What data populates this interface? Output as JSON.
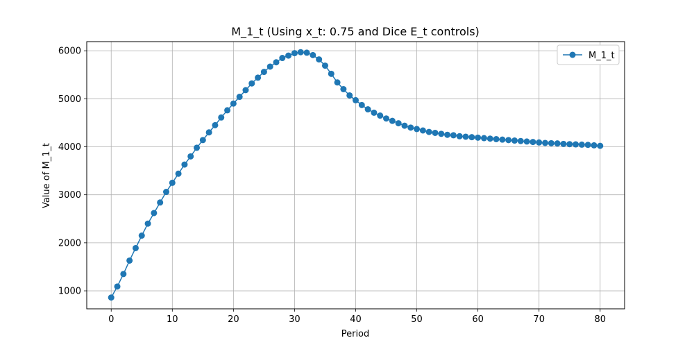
{
  "chart_data": {
    "type": "line",
    "title": "M_1_t (Using x_t: 0.75 and Dice E_t controls)",
    "xlabel": "Period",
    "ylabel": "Value of M_1_t",
    "xlim": [
      -4,
      84
    ],
    "ylim": [
      625,
      6190
    ],
    "xticks": [
      0,
      10,
      20,
      30,
      40,
      50,
      60,
      70,
      80
    ],
    "yticks": [
      1000,
      2000,
      3000,
      4000,
      5000,
      6000
    ],
    "grid": true,
    "legend_position": "top-right",
    "series": [
      {
        "name": "M_1_t",
        "color": "#1f77b4",
        "marker": "circle",
        "x": [
          0,
          1,
          2,
          3,
          4,
          5,
          6,
          7,
          8,
          9,
          10,
          11,
          12,
          13,
          14,
          15,
          16,
          17,
          18,
          19,
          20,
          21,
          22,
          23,
          24,
          25,
          26,
          27,
          28,
          29,
          30,
          31,
          32,
          33,
          34,
          35,
          36,
          37,
          38,
          39,
          40,
          41,
          42,
          43,
          44,
          45,
          46,
          47,
          48,
          49,
          50,
          51,
          52,
          53,
          54,
          55,
          56,
          57,
          58,
          59,
          60,
          61,
          62,
          63,
          64,
          65,
          66,
          67,
          68,
          69,
          70,
          71,
          72,
          73,
          74,
          75,
          76,
          77,
          78,
          79,
          80
        ],
        "values": [
          860,
          1090,
          1350,
          1630,
          1890,
          2150,
          2400,
          2620,
          2840,
          3060,
          3250,
          3440,
          3630,
          3800,
          3980,
          4140,
          4300,
          4450,
          4610,
          4760,
          4900,
          5040,
          5180,
          5320,
          5440,
          5560,
          5670,
          5760,
          5850,
          5900,
          5950,
          5970,
          5960,
          5910,
          5820,
          5690,
          5520,
          5340,
          5200,
          5070,
          4970,
          4870,
          4780,
          4710,
          4650,
          4590,
          4540,
          4490,
          4440,
          4400,
          4370,
          4340,
          4310,
          4290,
          4270,
          4250,
          4240,
          4220,
          4210,
          4200,
          4190,
          4180,
          4170,
          4160,
          4150,
          4140,
          4130,
          4120,
          4110,
          4100,
          4090,
          4080,
          4075,
          4070,
          4060,
          4055,
          4050,
          4045,
          4040,
          4030,
          4020
        ]
      }
    ]
  }
}
